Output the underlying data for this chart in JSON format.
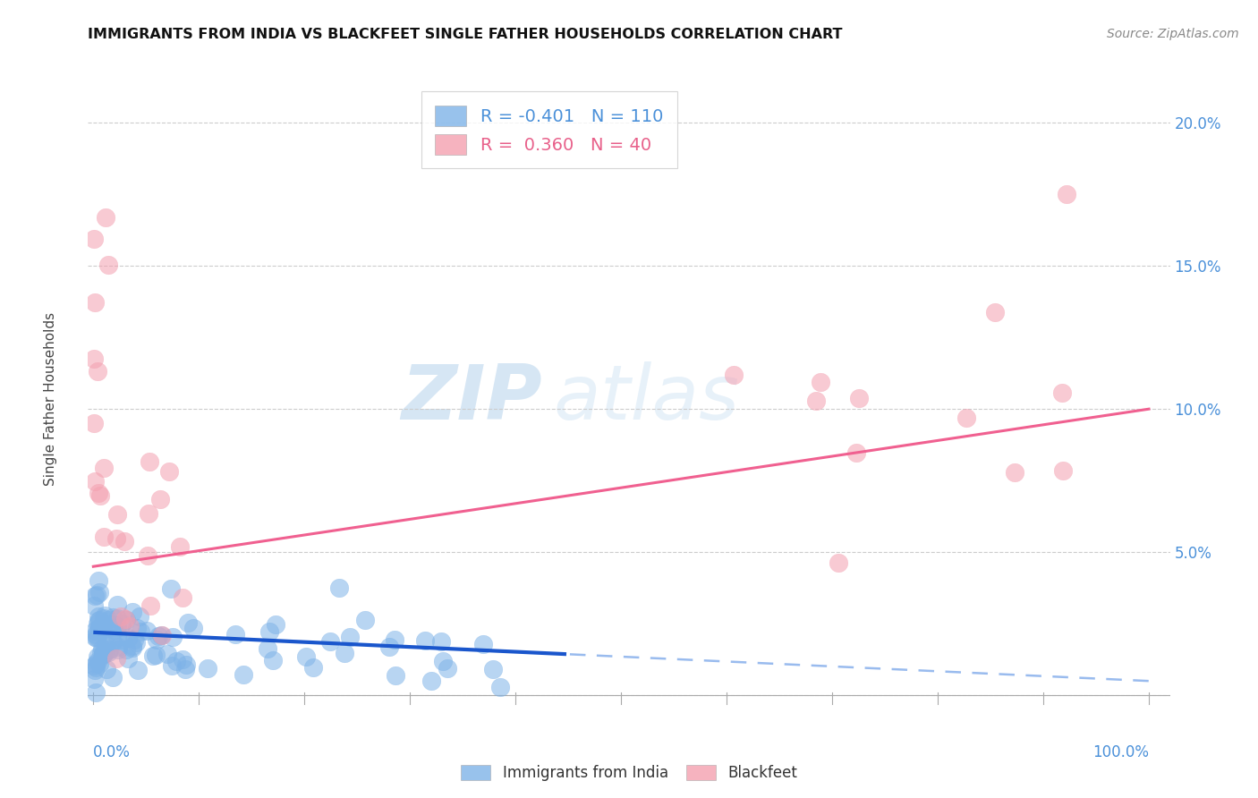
{
  "title": "IMMIGRANTS FROM INDIA VS BLACKFEET SINGLE FATHER HOUSEHOLDS CORRELATION CHART",
  "source": "Source: ZipAtlas.com",
  "ylabel": "Single Father Households",
  "legend_blue_r": "-0.401",
  "legend_blue_n": "110",
  "legend_pink_r": "0.360",
  "legend_pink_n": "40",
  "blue_color": "#7EB3E8",
  "pink_color": "#F4A0B0",
  "blue_line_solid_color": "#1A56CC",
  "blue_line_dashed_color": "#99BBEE",
  "pink_line_color": "#F06090",
  "watermark_zip": "ZIP",
  "watermark_atlas": "atlas",
  "ytick_vals": [
    0.0,
    0.05,
    0.1,
    0.15,
    0.2
  ],
  "ytick_labels": [
    "",
    "5.0%",
    "10.0%",
    "15.0%",
    "20.0%"
  ]
}
